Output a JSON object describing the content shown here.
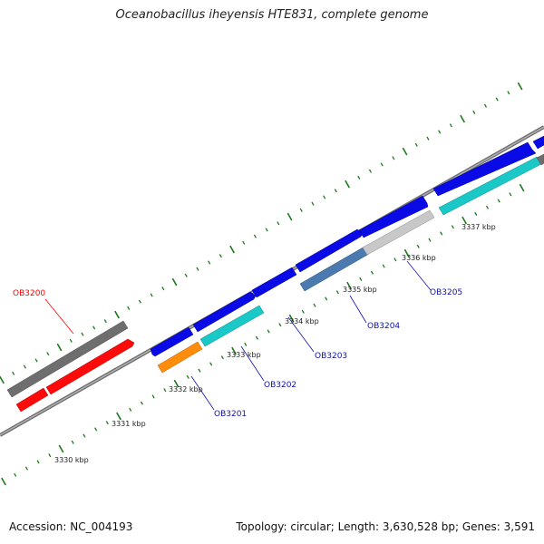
{
  "title": "Oceanobacillus iheyensis HTE831, complete genome",
  "footer": {
    "accession": "Accession: NC_004193",
    "summary": "Topology: circular; Length: 3,630,528 bp; Genes: 3,591"
  },
  "colors": {
    "backbone": "#8a8a8a",
    "tick": "#1a7a1a",
    "forward_gene": "#0a0ae6",
    "gray_gene": "#6e6e6e",
    "light_gray_gene": "#c8c8c8",
    "red_gene": "#ff0a0a",
    "cyan_gene": "#1ac8c8",
    "orange_gene": "#ff8c0a",
    "steel_gene": "#4a7ab0",
    "label_red": "#ff0000",
    "label_blue": "#1010b0"
  },
  "kbp_labels": [
    {
      "text": "3330 kbp"
    },
    {
      "text": "3331 kbp"
    },
    {
      "text": "3332 kbp"
    },
    {
      "text": "3333 kbp"
    },
    {
      "text": "3334 kbp"
    },
    {
      "text": "3335 kbp"
    },
    {
      "text": "3336 kbp"
    },
    {
      "text": "3337 kbp"
    }
  ],
  "gene_labels": [
    {
      "text": "OB3200",
      "color": "#ff0000"
    },
    {
      "text": "OB3201",
      "color": "#1010b0"
    },
    {
      "text": "OB3202",
      "color": "#1010b0"
    },
    {
      "text": "OB3203",
      "color": "#1010b0"
    },
    {
      "text": "OB3204",
      "color": "#1010b0"
    },
    {
      "text": "OB3205",
      "color": "#1010b0"
    }
  ]
}
